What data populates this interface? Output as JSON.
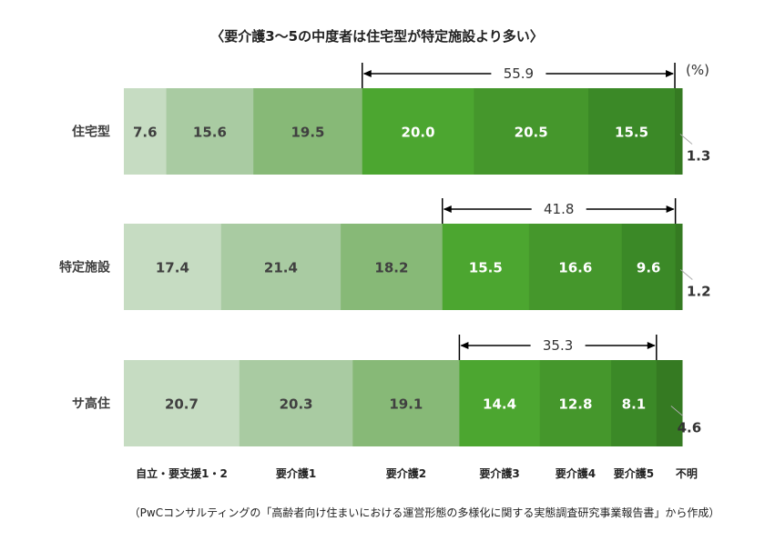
{
  "chart_data": {
    "type": "bar",
    "stacked": true,
    "orientation": "horizontal",
    "title": "〈要介護3～5の中度者は住宅型が特定施設より多い〉",
    "unit_label": "(%)",
    "categories": [
      "住宅型",
      "特定施設",
      "サ高住"
    ],
    "legend": [
      "自立・要支援1・2",
      "要介護1",
      "要介護2",
      "要介護3",
      "要介護4",
      "要介護5",
      "不明"
    ],
    "colors": [
      "#c6dcc2",
      "#a9cba2",
      "#87b977",
      "#4ca630",
      "#45972c",
      "#3b8927",
      "#357a22"
    ],
    "label_colors": [
      "#404040",
      "#404040",
      "#404040",
      "#ffffff",
      "#ffffff",
      "#ffffff",
      "#333333"
    ],
    "series_values": [
      [
        7.6,
        15.6,
        19.5,
        20.0,
        20.5,
        15.5,
        1.3
      ],
      [
        17.4,
        21.4,
        18.2,
        15.5,
        16.6,
        9.6,
        1.2
      ],
      [
        20.7,
        20.3,
        19.1,
        14.4,
        12.8,
        8.1,
        4.6
      ]
    ],
    "value_labels": [
      [
        "7.6",
        "15.6",
        "19.5",
        "20.0",
        "20.5",
        "15.5",
        "1.3"
      ],
      [
        "17.4",
        "21.4",
        "18.2",
        "15.5",
        "16.6",
        "9.6",
        "1.2"
      ],
      [
        "20.7",
        "20.3",
        "19.1",
        "14.4",
        "12.8",
        "8.1",
        "4.6"
      ]
    ],
    "bracket_labels": [
      "55.9",
      "41.8",
      "35.3"
    ],
    "source_note": "（PwCコンサルティングの「高齢者向け住まいにおける運営形態の多様化に関する実態調査研究事業報告書」から作成）"
  }
}
